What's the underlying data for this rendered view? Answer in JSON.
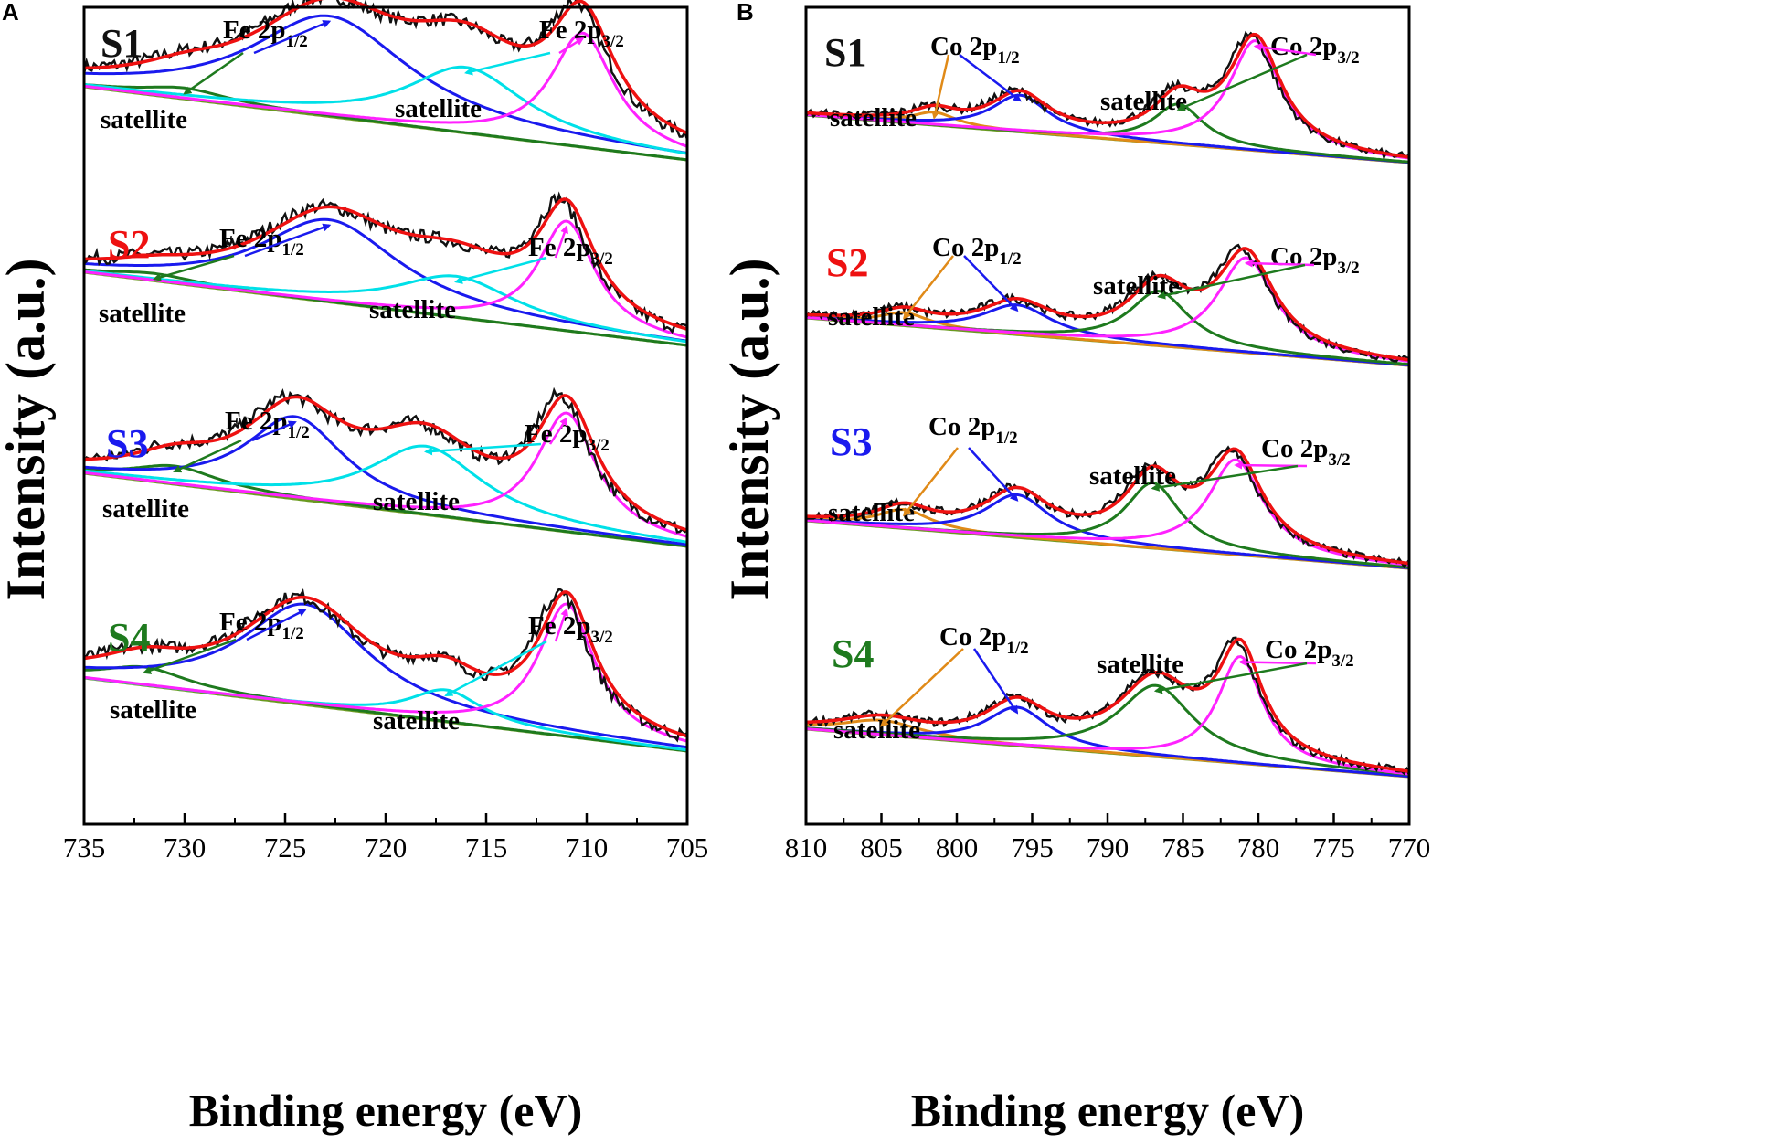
{
  "colors": {
    "raw": "#111111",
    "envelope": "#ee1111",
    "p12": "#1a1aee",
    "p32": "#ff22ff",
    "sat_a": "#00e0e8",
    "sat_b": "#1e7a1e",
    "sat_orange": "#e08a18",
    "baseline": "#6a9a20",
    "S1": "#111111",
    "S2": "#ee1111",
    "S3": "#1a1aee",
    "S4": "#1e7a1e"
  },
  "chart_data": [
    {
      "type": "line",
      "panel": "A",
      "element": "Fe",
      "xlabel": "Binding energy (eV)",
      "ylabel": "Intensity (a.u.)",
      "xlim": [
        735,
        705
      ],
      "x_reversed": true,
      "xticks": [
        "735",
        "730",
        "725",
        "720",
        "715",
        "710",
        "705"
      ],
      "xtick_values": [
        735,
        730,
        725,
        720,
        715,
        710,
        705
      ],
      "peak_labels": {
        "p12_main": "Fe 2p",
        "p12_sub": "1/2",
        "p32_main": "Fe 2p",
        "p32_sub": "3/2",
        "satellite": "satellite"
      },
      "samples": [
        {
          "name": "S1",
          "baseline_left": 0.8,
          "baseline_right": 0.0,
          "peaks": [
            {
              "role": "sat1",
              "color": "sat_b",
              "center": 730.0,
              "height": 0.12,
              "width": 2.6
            },
            {
              "role": "p12",
              "color": "p12",
              "center": 722.8,
              "height": 1.1,
              "width": 4.8
            },
            {
              "role": "sat2",
              "color": "sat_a",
              "center": 716.0,
              "height": 0.72,
              "width": 3.6
            },
            {
              "role": "p32",
              "color": "p32",
              "center": 710.2,
              "height": 1.25,
              "width": 1.9
            }
          ]
        },
        {
          "name": "S2",
          "baseline_left": 0.8,
          "baseline_right": 0.0,
          "peaks": [
            {
              "role": "sat1",
              "color": "sat_b",
              "center": 731.5,
              "height": 0.08,
              "width": 2.6
            },
            {
              "role": "p12",
              "color": "p12",
              "center": 722.8,
              "height": 0.9,
              "width": 4.2
            },
            {
              "role": "sat2",
              "color": "sat_a",
              "center": 716.5,
              "height": 0.45,
              "width": 3.6
            },
            {
              "role": "p32",
              "color": "p32",
              "center": 711.0,
              "height": 1.2,
              "width": 1.7
            }
          ]
        },
        {
          "name": "S3",
          "baseline_left": 0.8,
          "baseline_right": 0.0,
          "peaks": [
            {
              "role": "sat1",
              "color": "sat_b",
              "center": 730.5,
              "height": 0.2,
              "width": 2.6
            },
            {
              "role": "p12",
              "color": "p12",
              "center": 724.5,
              "height": 0.9,
              "width": 3.0
            },
            {
              "role": "sat2",
              "color": "sat_a",
              "center": 718.0,
              "height": 0.75,
              "width": 3.4
            },
            {
              "role": "p32",
              "color": "p32",
              "center": 711.0,
              "height": 1.3,
              "width": 1.8
            }
          ]
        },
        {
          "name": "S4",
          "baseline_left": 0.8,
          "baseline_right": 0.0,
          "peaks": [
            {
              "role": "sat1",
              "color": "sat_b",
              "center": 732.0,
              "height": 0.2,
              "width": 2.6
            },
            {
              "role": "p12",
              "color": "p12",
              "center": 724.0,
              "height": 1.1,
              "width": 3.8
            },
            {
              "role": "sat2",
              "color": "sat_a",
              "center": 717.0,
              "height": 0.35,
              "width": 2.2
            },
            {
              "role": "p32",
              "color": "p32",
              "center": 711.0,
              "height": 1.45,
              "width": 1.7
            }
          ]
        }
      ]
    },
    {
      "type": "line",
      "panel": "B",
      "element": "Co",
      "xlabel": "Binding energy (eV)",
      "ylabel": "Intensity (a.u.)",
      "xlim": [
        810,
        770
      ],
      "x_reversed": true,
      "xticks": [
        "810",
        "805",
        "800",
        "795",
        "790",
        "785",
        "780",
        "775",
        "770"
      ],
      "xtick_values": [
        810,
        805,
        800,
        795,
        790,
        785,
        780,
        775,
        770
      ],
      "peak_labels": {
        "p12_main": "Co 2p",
        "p12_sub": "1/2",
        "p32_main": "Co 2p",
        "p32_sub": "3/2",
        "satellite": "satellite"
      },
      "samples": [
        {
          "name": "S1",
          "baseline_left": 0.8,
          "baseline_right": 0.0,
          "peaks": [
            {
              "role": "sat1",
              "color": "sat_orange",
              "center": 801.5,
              "height": 0.22,
              "width": 1.8
            },
            {
              "role": "p12",
              "color": "p12",
              "center": 795.8,
              "height": 0.62,
              "width": 2.3
            },
            {
              "role": "sat2",
              "color": "sat_b",
              "center": 785.3,
              "height": 0.68,
              "width": 2.0
            },
            {
              "role": "p32",
              "color": "p32",
              "center": 780.2,
              "height": 1.85,
              "width": 2.1
            }
          ]
        },
        {
          "name": "S2",
          "baseline_left": 0.8,
          "baseline_right": 0.0,
          "peaks": [
            {
              "role": "sat1",
              "color": "sat_orange",
              "center": 803.5,
              "height": 0.22,
              "width": 2.0
            },
            {
              "role": "p12",
              "color": "p12",
              "center": 796.0,
              "height": 0.5,
              "width": 2.8
            },
            {
              "role": "sat2",
              "color": "sat_b",
              "center": 786.6,
              "height": 0.92,
              "width": 2.4
            },
            {
              "role": "p32",
              "color": "p32",
              "center": 780.8,
              "height": 1.6,
              "width": 2.3
            }
          ]
        },
        {
          "name": "S3",
          "baseline_left": 0.8,
          "baseline_right": 0.0,
          "peaks": [
            {
              "role": "sat1",
              "color": "sat_orange",
              "center": 803.5,
              "height": 0.32,
              "width": 2.2
            },
            {
              "role": "p12",
              "color": "p12",
              "center": 796.0,
              "height": 0.72,
              "width": 2.6
            },
            {
              "role": "sat2",
              "color": "sat_b",
              "center": 787.0,
              "height": 1.1,
              "width": 2.2
            },
            {
              "role": "p32",
              "color": "p32",
              "center": 781.5,
              "height": 1.6,
              "width": 2.2
            }
          ]
        },
        {
          "name": "S4",
          "baseline_left": 0.8,
          "baseline_right": 0.0,
          "peaks": [
            {
              "role": "sat1",
              "color": "sat_orange",
              "center": 805.0,
              "height": 0.25,
              "width": 3.2
            },
            {
              "role": "p12",
              "color": "p12",
              "center": 796.0,
              "height": 0.65,
              "width": 2.5
            },
            {
              "role": "sat2",
              "color": "sat_b",
              "center": 786.8,
              "height": 1.2,
              "width": 3.0
            },
            {
              "role": "p32",
              "color": "p32",
              "center": 781.2,
              "height": 1.8,
              "width": 1.8
            }
          ]
        }
      ]
    }
  ]
}
